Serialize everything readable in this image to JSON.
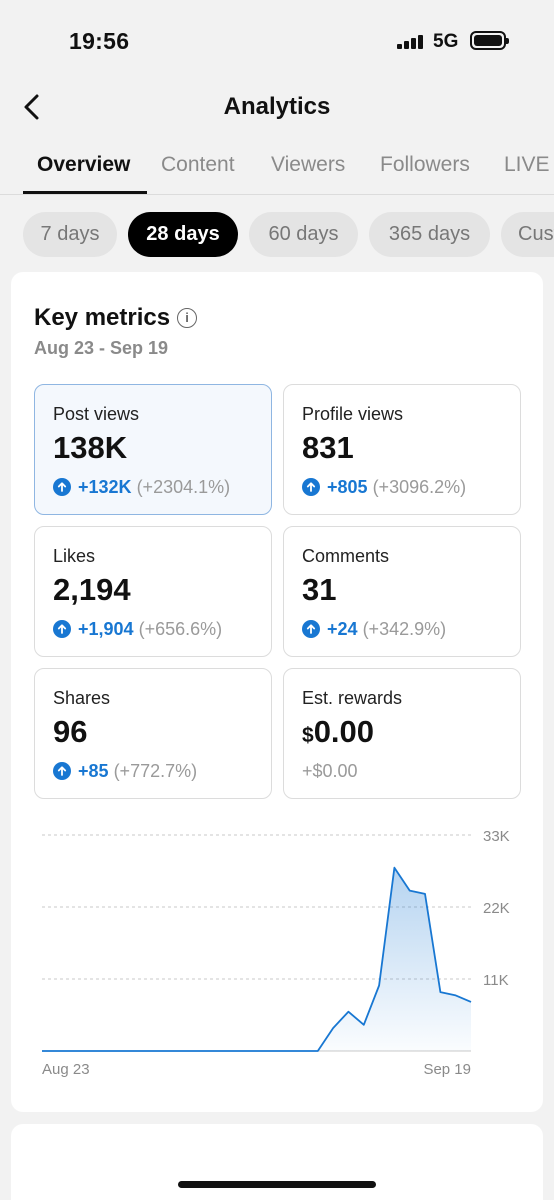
{
  "status_bar": {
    "time": "19:56",
    "network": "5G"
  },
  "header": {
    "title": "Analytics"
  },
  "tabs": [
    {
      "label": "Overview",
      "active": true
    },
    {
      "label": "Content",
      "active": false
    },
    {
      "label": "Viewers",
      "active": false
    },
    {
      "label": "Followers",
      "active": false
    },
    {
      "label": "LIVE",
      "active": false
    }
  ],
  "ranges": [
    {
      "label": "7 days",
      "active": false
    },
    {
      "label": "28 days",
      "active": true
    },
    {
      "label": "60 days",
      "active": false
    },
    {
      "label": "365 days",
      "active": false
    },
    {
      "label": "Custom",
      "active": false
    }
  ],
  "key_metrics": {
    "title": "Key metrics",
    "date_range": "Aug 23 - Sep 19",
    "items": [
      {
        "label": "Post views",
        "value": "138K",
        "delta": "+132K",
        "pct": "(+2304.1%)",
        "selected": true
      },
      {
        "label": "Profile views",
        "value": "831",
        "delta": "+805",
        "pct": "(+3096.2%)"
      },
      {
        "label": "Likes",
        "value": "2,194",
        "delta": "+1,904",
        "pct": "(+656.6%)"
      },
      {
        "label": "Comments",
        "value": "31",
        "delta": "+24",
        "pct": "(+342.9%)"
      },
      {
        "label": "Shares",
        "value": "96",
        "delta": "+85",
        "pct": "(+772.7%)"
      },
      {
        "label": "Est. rewards",
        "currency": "$",
        "value": "0.00",
        "delta_plain": "+$0.00"
      }
    ]
  },
  "chart_data": {
    "type": "area",
    "series": [
      {
        "values": [
          0,
          0,
          0,
          0,
          0,
          0,
          0,
          0,
          0,
          0,
          0,
          0,
          0,
          0,
          0,
          0,
          0,
          0,
          0,
          3500,
          6000,
          4000,
          10000,
          28000,
          24500,
          24000,
          9000,
          8500,
          7500
        ]
      }
    ],
    "x_tick_labels": [
      "Aug 23",
      "Sep 19"
    ],
    "y_tick_labels": [
      "33K",
      "22K",
      "11K"
    ],
    "y_ticks": [
      33000,
      22000,
      11000
    ],
    "ylim": [
      0,
      33000
    ],
    "grid": true,
    "color": "#1877d2"
  }
}
